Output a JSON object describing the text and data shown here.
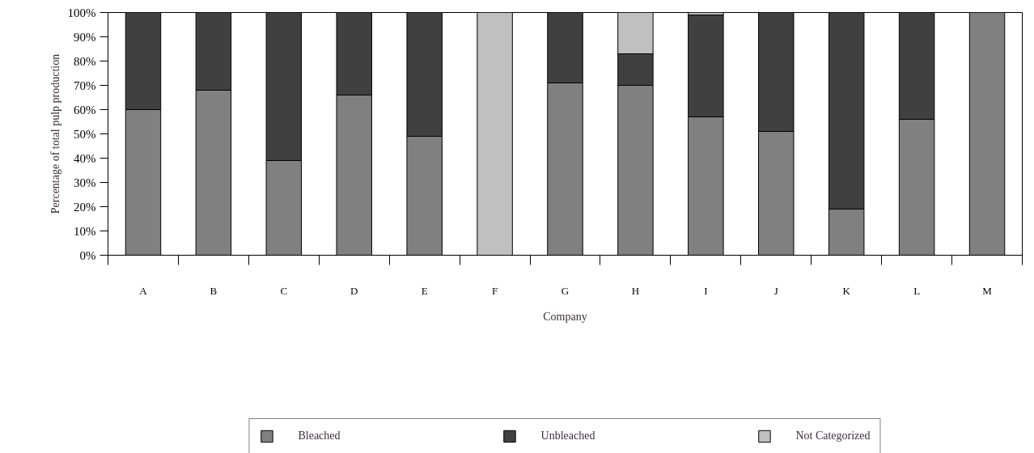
{
  "chart_data": {
    "type": "bar",
    "stacked": true,
    "xlabel": "Company",
    "ylabel": "Percentage of total pulp production",
    "categories": [
      "A",
      "B",
      "C",
      "D",
      "E",
      "F",
      "G",
      "H",
      "I",
      "J",
      "K",
      "L",
      "M"
    ],
    "series": [
      {
        "name": "Bleached",
        "color": "#808080",
        "values": [
          60,
          68,
          39,
          66,
          49,
          0,
          71,
          70,
          57,
          51,
          19,
          56,
          100
        ]
      },
      {
        "name": "Unbleached",
        "color": "#404040",
        "values": [
          40,
          32,
          61,
          34,
          51,
          0,
          29,
          13,
          42,
          49,
          81,
          44,
          0
        ]
      },
      {
        "name": "Not Categorized",
        "color": "#c0c0c0",
        "values": [
          0,
          0,
          0,
          0,
          0,
          100,
          0,
          17,
          1,
          0,
          0,
          0,
          0
        ]
      }
    ],
    "ylim": [
      0,
      100
    ],
    "yticks": [
      {
        "value": 0,
        "label": "0%"
      },
      {
        "value": 10,
        "label": "10%"
      },
      {
        "value": 20,
        "label": "20%"
      },
      {
        "value": 30,
        "label": "30%"
      },
      {
        "value": 40,
        "label": "40%"
      },
      {
        "value": 50,
        "label": "50%"
      },
      {
        "value": 60,
        "label": "60%"
      },
      {
        "value": 70,
        "label": "70%"
      },
      {
        "value": 80,
        "label": "80%"
      },
      {
        "value": 90,
        "label": "90%"
      },
      {
        "value": 100,
        "label": "100%"
      }
    ],
    "grid": false,
    "legend": "bottom"
  }
}
